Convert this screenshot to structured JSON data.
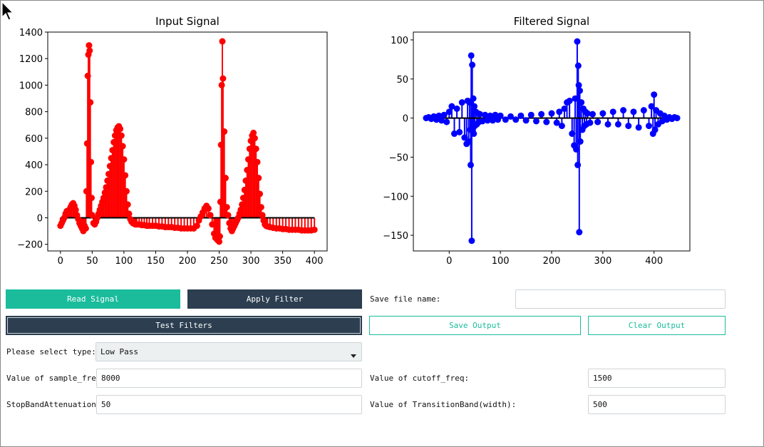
{
  "plots": {
    "input": {
      "title": "Input Signal",
      "xticks": [
        "0",
        "50",
        "100",
        "150",
        "200",
        "250",
        "300",
        "350",
        "400"
      ],
      "yticks": [
        "−200",
        "0",
        "200",
        "400",
        "600",
        "800",
        "1000",
        "1200",
        "1400"
      ]
    },
    "filtered": {
      "title": "Filtered Signal",
      "xticks": [
        "0",
        "100",
        "200",
        "300",
        "400"
      ],
      "yticks": [
        "−150",
        "−100",
        "−50",
        "0",
        "50",
        "100"
      ]
    }
  },
  "chart_data": [
    {
      "type": "scatter",
      "title": "Input Signal",
      "xlim": [
        -20,
        420
      ],
      "ylim": [
        -250,
        1400
      ],
      "xticks": [
        0,
        50,
        100,
        150,
        200,
        250,
        300,
        350,
        400
      ],
      "yticks": [
        -200,
        0,
        200,
        400,
        600,
        800,
        1000,
        1200,
        1400
      ],
      "color": "#ff0000",
      "style": "stem",
      "x": [
        0,
        2,
        4,
        6,
        8,
        10,
        12,
        14,
        16,
        18,
        20,
        22,
        24,
        26,
        28,
        30,
        32,
        34,
        36,
        38,
        40,
        41,
        42,
        43,
        44,
        45,
        46,
        47,
        48,
        49,
        50,
        52,
        54,
        56,
        58,
        60,
        62,
        64,
        66,
        68,
        70,
        72,
        74,
        76,
        78,
        80,
        82,
        84,
        86,
        88,
        90,
        92,
        94,
        96,
        98,
        100,
        102,
        104,
        106,
        108,
        110,
        112,
        114,
        116,
        118,
        120,
        124,
        128,
        132,
        136,
        140,
        145,
        150,
        155,
        160,
        165,
        170,
        175,
        180,
        185,
        190,
        195,
        200,
        205,
        210,
        215,
        218,
        221,
        224,
        227,
        230,
        233,
        236,
        239,
        242,
        244,
        246,
        248,
        250,
        251,
        252,
        253,
        254,
        255,
        256,
        258,
        260,
        262,
        264,
        266,
        268,
        270,
        272,
        274,
        276,
        278,
        280,
        282,
        284,
        286,
        288,
        290,
        292,
        294,
        296,
        298,
        300,
        302,
        304,
        306,
        308,
        310,
        312,
        314,
        316,
        318,
        320,
        322,
        324,
        326,
        330,
        335,
        340,
        345,
        350,
        355,
        360,
        365,
        370,
        375,
        380,
        385,
        390,
        395,
        400
      ],
      "y": [
        -60,
        -40,
        -20,
        0,
        30,
        50,
        40,
        60,
        80,
        100,
        110,
        90,
        60,
        20,
        -10,
        -40,
        -60,
        -80,
        -100,
        -60,
        -80,
        200,
        560,
        1070,
        1230,
        1300,
        1260,
        870,
        420,
        150,
        20,
        -40,
        -50,
        -30,
        0,
        30,
        60,
        90,
        120,
        150,
        190,
        230,
        280,
        330,
        390,
        450,
        510,
        570,
        620,
        660,
        680,
        690,
        670,
        620,
        540,
        440,
        320,
        200,
        100,
        30,
        -10,
        -30,
        -40,
        -45,
        -50,
        -50,
        -50,
        -55,
        -55,
        -60,
        -60,
        -60,
        -60,
        -65,
        -65,
        -70,
        -70,
        -70,
        -75,
        -75,
        -80,
        -80,
        -80,
        -80,
        -80,
        -60,
        -20,
        10,
        40,
        70,
        90,
        70,
        20,
        -50,
        -120,
        -150,
        -160,
        -170,
        -180,
        -140,
        120,
        550,
        1000,
        1330,
        1050,
        650,
        300,
        80,
        20,
        -40,
        -80,
        -100,
        -80,
        -60,
        -40,
        -20,
        0,
        30,
        60,
        100,
        150,
        210,
        280,
        360,
        440,
        520,
        580,
        620,
        640,
        600,
        520,
        420,
        300,
        180,
        80,
        20,
        -20,
        -50,
        -60,
        -65,
        -70,
        -75,
        -80,
        -80,
        -85,
        -85,
        -90,
        -90,
        -90,
        -90,
        -95,
        -95,
        -95,
        -95,
        -90
      ]
    },
    {
      "type": "scatter",
      "title": "Filtered Signal",
      "xlim": [
        -70,
        470
      ],
      "ylim": [
        -170,
        110
      ],
      "xticks": [
        0,
        100,
        200,
        300,
        400
      ],
      "yticks": [
        -150,
        -100,
        -50,
        0,
        50,
        100
      ],
      "color": "#0000ff",
      "style": "stem",
      "x": [
        -45,
        -40,
        -35,
        -30,
        -25,
        -20,
        -15,
        -10,
        -5,
        0,
        5,
        10,
        15,
        20,
        25,
        30,
        34,
        36,
        38,
        40,
        41,
        42,
        43,
        44,
        45,
        46,
        47,
        48,
        49,
        50,
        52,
        54,
        56,
        58,
        60,
        65,
        70,
        75,
        80,
        85,
        90,
        95,
        100,
        110,
        120,
        130,
        140,
        150,
        160,
        170,
        180,
        190,
        200,
        210,
        215,
        220,
        225,
        230,
        235,
        240,
        244,
        246,
        248,
        250,
        251,
        252,
        253,
        254,
        255,
        256,
        258,
        260,
        262,
        264,
        266,
        268,
        270,
        275,
        280,
        290,
        300,
        310,
        320,
        330,
        340,
        350,
        360,
        370,
        380,
        390,
        395,
        398,
        400,
        402,
        404,
        408,
        412,
        416,
        420,
        425,
        430,
        435,
        440,
        445
      ],
      "y": [
        0,
        1,
        -1,
        2,
        -2,
        3,
        -3,
        4,
        -5,
        8,
        15,
        -20,
        12,
        -18,
        20,
        -25,
        -33,
        22,
        -30,
        20,
        -15,
        -60,
        80,
        -157,
        68,
        -15,
        25,
        -20,
        15,
        -10,
        8,
        -8,
        6,
        -5,
        5,
        -4,
        4,
        -3,
        3,
        -3,
        4,
        -2,
        3,
        -2,
        2,
        -2,
        3,
        -3,
        4,
        -4,
        5,
        -5,
        6,
        -6,
        8,
        -10,
        12,
        20,
        22,
        -20,
        -35,
        25,
        -40,
        98,
        -60,
        67,
        42,
        -146,
        35,
        -30,
        20,
        -15,
        12,
        -10,
        8,
        -8,
        6,
        -6,
        5,
        -5,
        6,
        -8,
        8,
        -8,
        10,
        -10,
        8,
        -12,
        10,
        -10,
        15,
        -20,
        30,
        -15,
        10,
        -8,
        6,
        -4,
        3,
        -2,
        1,
        -1,
        1,
        0
      ]
    }
  ],
  "controls": {
    "read_signal": "Read Signal",
    "apply_filter": "Apply Filter",
    "test_filters": "Test Filters",
    "save_file_label": "Save file name:",
    "save_file_value": "",
    "save_output": "Save Output",
    "clear_output": "Clear Output",
    "type_label": "Please select type:",
    "type_value": "Low Pass",
    "sample_freq_label": "Value of sample_freq:",
    "sample_freq_value": "8000",
    "cutoff_freq_label": "Value of cutoff_freq:",
    "cutoff_freq_value": "1500",
    "stopband_label": "StopBandAttenuation:",
    "stopband_value": "50",
    "transition_label": "Value of TransitionBand(width):",
    "transition_value": "500"
  }
}
